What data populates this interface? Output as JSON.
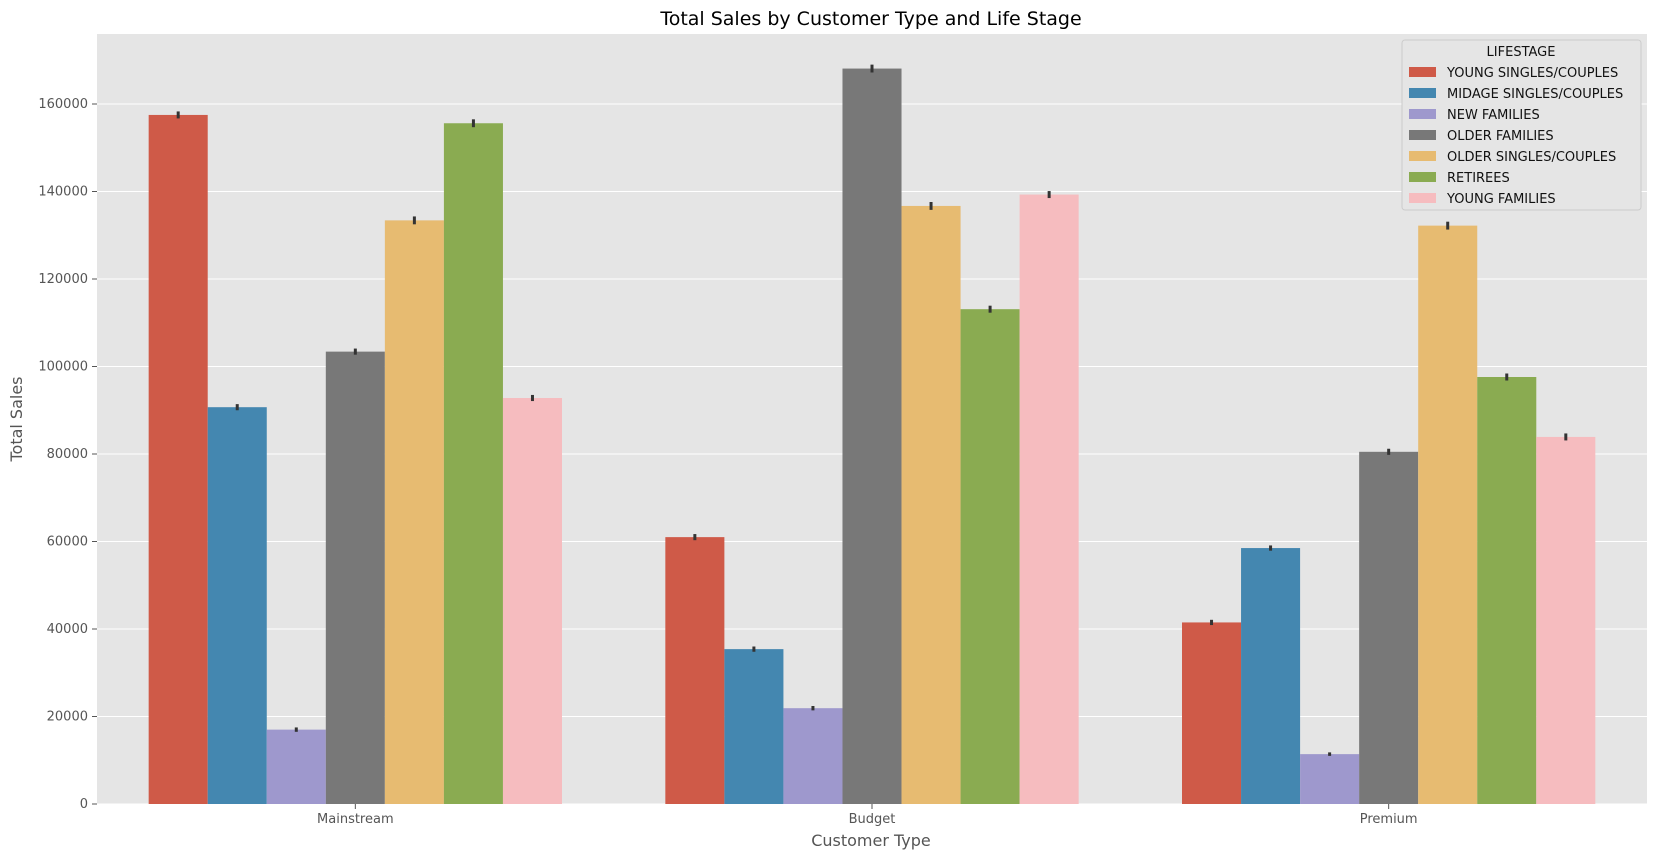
{
  "chart_data": {
    "type": "bar",
    "title": "Total Sales by Customer Type and Life Stage",
    "xlabel": "Customer Type",
    "ylabel": "Total Sales",
    "categories": [
      "Mainstream",
      "Budget",
      "Premium"
    ],
    "ylim": [
      0,
      176000
    ],
    "yticks": [
      0,
      20000,
      40000,
      60000,
      80000,
      100000,
      120000,
      140000,
      160000
    ],
    "ytick_labels": [
      "0",
      "20000",
      "40000",
      "60000",
      "80000",
      "100000",
      "120000",
      "140000",
      "160000"
    ],
    "grid": true,
    "legend": {
      "title": "LIFESTAGE",
      "placement": "top-right"
    },
    "background": "#e5e5e5",
    "error_bars": true,
    "series": [
      {
        "name": "YOUNG SINGLES/COUPLES",
        "color": "#cf5a48",
        "values": [
          157500,
          61000,
          41500
        ],
        "err": [
          800,
          700,
          600
        ]
      },
      {
        "name": "MIDAGE SINGLES/COUPLES",
        "color": "#4487b0",
        "values": [
          90700,
          35400,
          58500
        ],
        "err": [
          700,
          600,
          600
        ]
      },
      {
        "name": "NEW FAMILIES",
        "color": "#9e98cd",
        "values": [
          17000,
          21900,
          11400
        ],
        "err": [
          500,
          500,
          400
        ]
      },
      {
        "name": "OLDER FAMILIES",
        "color": "#787878",
        "values": [
          103400,
          168100,
          80500
        ],
        "err": [
          700,
          900,
          700
        ]
      },
      {
        "name": "OLDER SINGLES/COUPLES",
        "color": "#e7bb71",
        "values": [
          133400,
          136700,
          132200
        ],
        "err": [
          900,
          900,
          900
        ]
      },
      {
        "name": "RETIREES",
        "color": "#8aab51",
        "values": [
          155600,
          113100,
          97600
        ],
        "err": [
          900,
          800,
          800
        ]
      },
      {
        "name": "YOUNG FAMILIES",
        "color": "#f6bcbf",
        "values": [
          92800,
          139300,
          83900
        ],
        "err": [
          700,
          800,
          800
        ]
      }
    ]
  }
}
